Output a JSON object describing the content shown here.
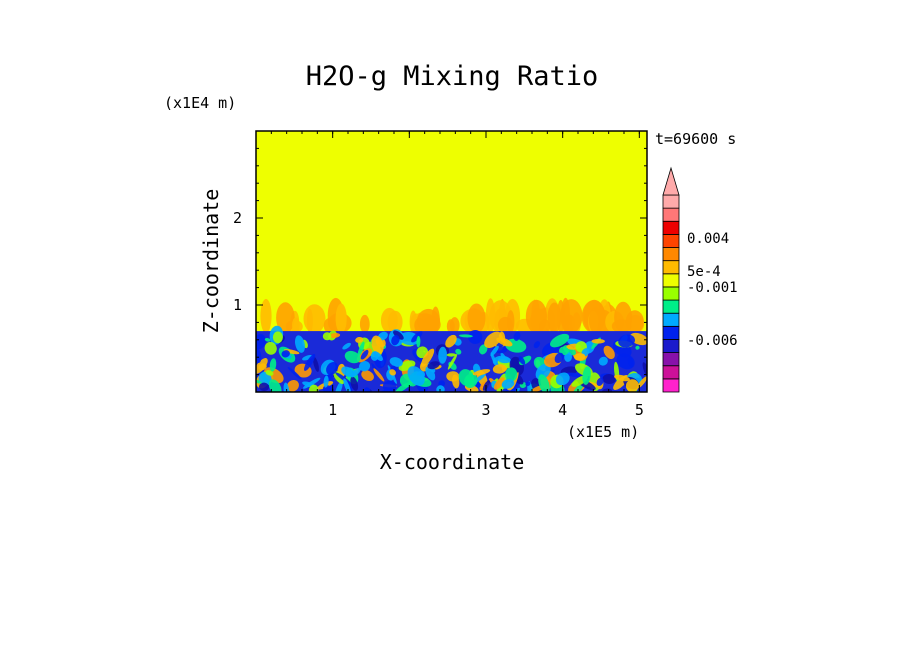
{
  "chart_data": {
    "type": "heatmap",
    "title": "H2O-g Mixing Ratio",
    "time_label": "t=69600 s",
    "xlabel": "X-coordinate",
    "ylabel": "Z-coordinate",
    "x_unit": "(x1E5 m)",
    "y_unit": "(x1E4 m)",
    "xlim": [
      0,
      5.1
    ],
    "ylim": [
      0,
      3.0
    ],
    "x_ticks": [
      1,
      2,
      3,
      4,
      5
    ],
    "y_ticks": [
      1,
      2
    ],
    "x_tick_labels": [
      "1",
      "2",
      "3",
      "4",
      "5"
    ],
    "y_tick_labels": [
      "1",
      "2"
    ],
    "field": {
      "upper_layer_color": "#eeff00",
      "boundary_layer_top": 0.7,
      "plume_top": 1.05
    },
    "colorbar": {
      "colors": [
        "#ff22cc",
        "#cc1199",
        "#8811aa",
        "#1a1acc",
        "#0022ee",
        "#00aaff",
        "#00ee88",
        "#99ff00",
        "#eeff00",
        "#ffbb00",
        "#ff8800",
        "#ff4400",
        "#ee0000",
        "#ff7777",
        "#ffaaaa"
      ],
      "labels": [
        "0.004",
        "5e-4",
        "-0.001",
        "-0.006"
      ],
      "extend": "max"
    }
  }
}
